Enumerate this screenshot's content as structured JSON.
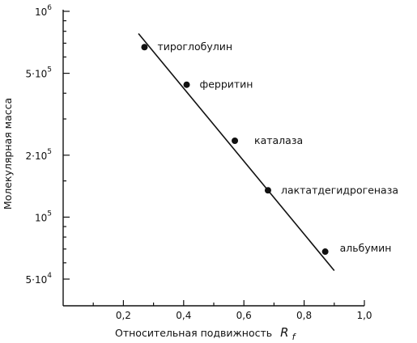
{
  "chart_data": {
    "type": "scatter",
    "title": "",
    "xlabel": "Относительная подвижность",
    "xlabel_symbol": "R",
    "xlabel_subscript": "f",
    "ylabel": "Молекулярная масса",
    "xlim": [
      0,
      1.0
    ],
    "ylim": [
      40000,
      1000000
    ],
    "yscale": "log",
    "grid": false,
    "x_ticks": [
      {
        "value": 0.2,
        "label": "0,2"
      },
      {
        "value": 0.4,
        "label": "0,4"
      },
      {
        "value": 0.6,
        "label": "0,6"
      },
      {
        "value": 0.8,
        "label": "0,8"
      },
      {
        "value": 1.0,
        "label": "1,0"
      }
    ],
    "y_ticks": [
      {
        "value": 1000000,
        "label": "10",
        "exp": "6"
      },
      {
        "value": 500000,
        "label": "5·10",
        "exp": "5"
      },
      {
        "value": 200000,
        "label": "2·10",
        "exp": "5"
      },
      {
        "value": 100000,
        "label": "10",
        "exp": "5"
      },
      {
        "value": 50000,
        "label": "5·10",
        "exp": "4"
      }
    ],
    "points": [
      {
        "name": "тироглобулин",
        "x": 0.27,
        "y": 670000
      },
      {
        "name": "ферритин",
        "x": 0.41,
        "y": 440000
      },
      {
        "name": "каталаза",
        "x": 0.57,
        "y": 235000
      },
      {
        "name": "лактатдегидрогеназа",
        "x": 0.68,
        "y": 135000
      },
      {
        "name": "альбумин",
        "x": 0.87,
        "y": 68000
      }
    ],
    "fit_line": {
      "x": [
        0.25,
        0.9
      ],
      "y": [
        780000,
        55000
      ]
    }
  }
}
